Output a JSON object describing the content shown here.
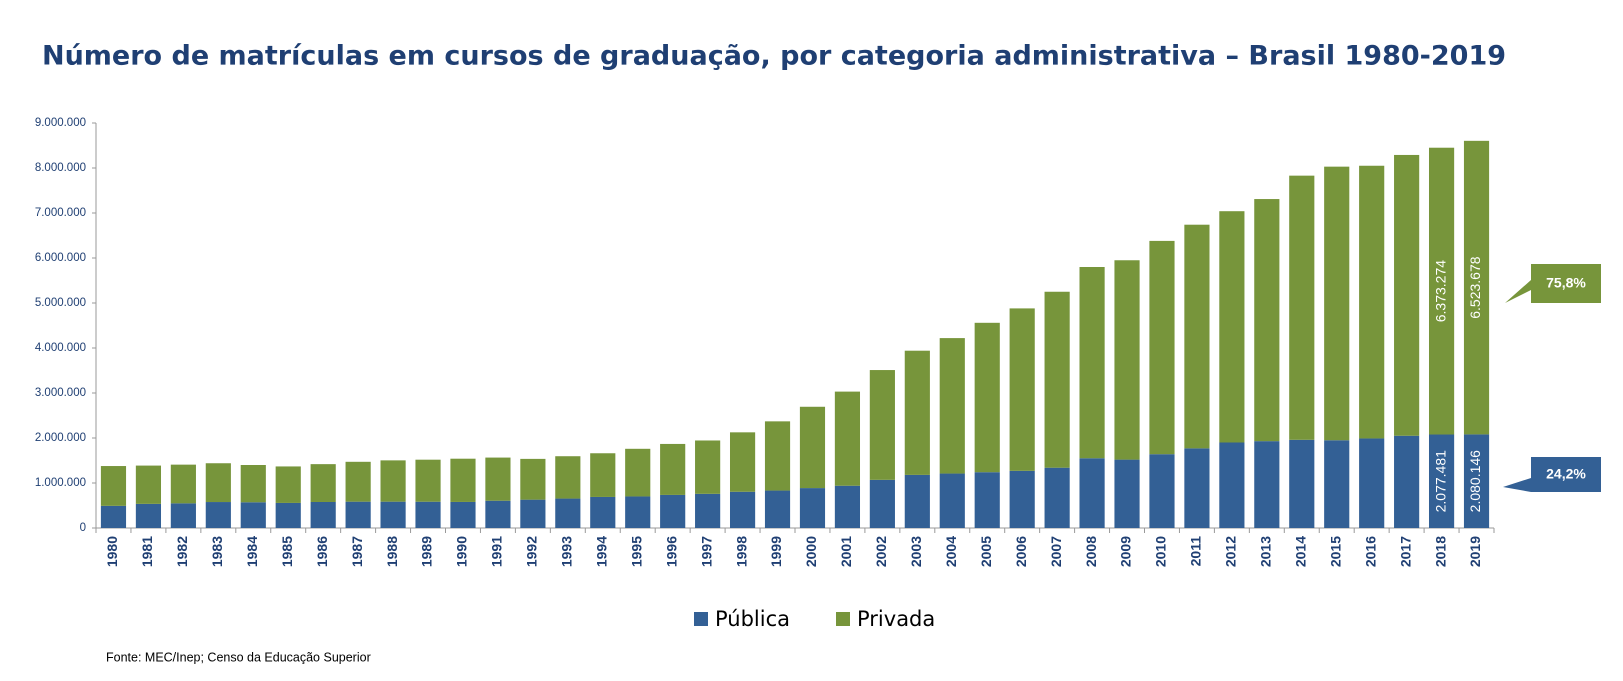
{
  "chart_data": {
    "type": "stacked-bar",
    "title": "Número de matrículas em cursos de graduação, por categoria administrativa – Brasil 1980-2019",
    "source": "Fonte: MEC/Inep; Censo da Educação Superior",
    "categories": [
      "1980",
      "1981",
      "1982",
      "1983",
      "1984",
      "1985",
      "1986",
      "1987",
      "1988",
      "1989",
      "1990",
      "1991",
      "1992",
      "1993",
      "1994",
      "1995",
      "1996",
      "1997",
      "1998",
      "1999",
      "2000",
      "2001",
      "2002",
      "2003",
      "2004",
      "2005",
      "2006",
      "2007",
      "2008",
      "2009",
      "2010",
      "2011",
      "2012",
      "2013",
      "2014",
      "2015",
      "2016",
      "2017",
      "2018",
      "2019"
    ],
    "series": [
      {
        "name": "Pública",
        "color": "#336095",
        "values": [
          492000,
          536000,
          548000,
          577000,
          572000,
          557000,
          578000,
          585000,
          585000,
          584000,
          579000,
          606000,
          630000,
          654000,
          690000,
          701000,
          735000,
          759000,
          805000,
          832000,
          887000,
          939000,
          1070000,
          1180000,
          1210000,
          1240000,
          1270000,
          1340000,
          1550000,
          1520000,
          1640000,
          1770000,
          1900000,
          1930000,
          1960000,
          1950000,
          1990000,
          2050000,
          2077481,
          2080146
        ],
        "value_labels": [
          null,
          null,
          null,
          null,
          null,
          null,
          null,
          null,
          null,
          null,
          null,
          null,
          null,
          null,
          null,
          null,
          null,
          null,
          null,
          null,
          null,
          null,
          null,
          null,
          null,
          null,
          null,
          null,
          null,
          null,
          null,
          null,
          null,
          null,
          null,
          null,
          null,
          null,
          "2.077.481",
          "2.080.146"
        ]
      },
      {
        "name": "Privada",
        "color": "#77953b",
        "values": [
          885000,
          851000,
          860000,
          862000,
          828000,
          811000,
          841000,
          886000,
          918000,
          934000,
          961000,
          959000,
          906000,
          941000,
          971000,
          1059000,
          1133000,
          1186000,
          1321000,
          1538000,
          1807000,
          2092000,
          2440000,
          2760000,
          3010000,
          3320000,
          3610000,
          3910000,
          4250000,
          4430000,
          4740000,
          4970000,
          5140000,
          5380000,
          5870000,
          6080000,
          6060000,
          6240000,
          6373274,
          6523678
        ],
        "value_labels": [
          null,
          null,
          null,
          null,
          null,
          null,
          null,
          null,
          null,
          null,
          null,
          null,
          null,
          null,
          null,
          null,
          null,
          null,
          null,
          null,
          null,
          null,
          null,
          null,
          null,
          null,
          null,
          null,
          null,
          null,
          null,
          null,
          null,
          null,
          null,
          null,
          null,
          null,
          "6.373.274",
          "6.523.678"
        ]
      }
    ],
    "annotations": [
      {
        "text": "75,8%",
        "color": "#77953b"
      },
      {
        "text": "24,2%",
        "color": "#336095"
      }
    ],
    "ylim": [
      0,
      9000000
    ],
    "yticks": [
      0,
      {
        "value": 1000000,
        "label": "1.000.000"
      },
      {
        "value": 2000000,
        "label": "2.000.000"
      },
      {
        "value": 3000000,
        "label": "3.000.000"
      },
      {
        "value": 4000000,
        "label": "4.000.000"
      },
      {
        "value": 5000000,
        "label": "5.000.000"
      },
      {
        "value": 6000000,
        "label": "6.000.000"
      },
      {
        "value": 7000000,
        "label": "7.000.000"
      },
      {
        "value": 8000000,
        "label": "8.000.000"
      },
      {
        "value": 9000000,
        "label": "9.000.000"
      }
    ],
    "grid": false,
    "legend": "bottom"
  }
}
